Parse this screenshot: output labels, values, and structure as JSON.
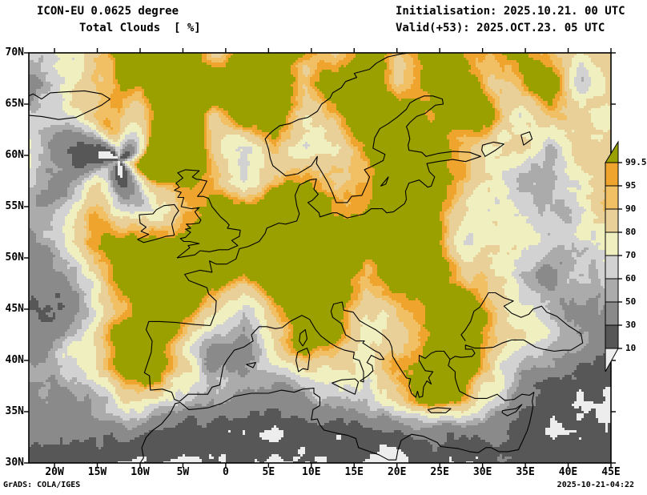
{
  "header": {
    "title_line1": "ICON-EU 0.0625 degree",
    "title_line2": "Total Clouds  [ %]",
    "init_line": "Initialisation: 2025.10.21. 00 UTC",
    "valid_line": "Valid(+53): 2025.OCT.23. 05 UTC"
  },
  "footer": {
    "left": "GrADS: COLA/IGES",
    "right": "2025-10-21-04:22"
  },
  "map": {
    "lat_range": [
      30,
      70
    ],
    "lon_range": [
      -23,
      45
    ],
    "lat_ticks": [
      {
        "label": "70N",
        "value": 70
      },
      {
        "label": "65N",
        "value": 65
      },
      {
        "label": "60N",
        "value": 60
      },
      {
        "label": "55N",
        "value": 55
      },
      {
        "label": "50N",
        "value": 50
      },
      {
        "label": "45N",
        "value": 45
      },
      {
        "label": "40N",
        "value": 40
      },
      {
        "label": "35N",
        "value": 35
      },
      {
        "label": "30N",
        "value": 30
      }
    ],
    "lon_ticks": [
      {
        "label": "20W",
        "value": -20
      },
      {
        "label": "15W",
        "value": -15
      },
      {
        "label": "10W",
        "value": -10
      },
      {
        "label": "5W",
        "value": -5
      },
      {
        "label": "0",
        "value": 0
      },
      {
        "label": "5E",
        "value": 5
      },
      {
        "label": "10E",
        "value": 10
      },
      {
        "label": "15E",
        "value": 15
      },
      {
        "label": "20E",
        "value": 20
      },
      {
        "label": "25E",
        "value": 25
      },
      {
        "label": "30E",
        "value": 30
      },
      {
        "label": "35E",
        "value": 35
      },
      {
        "label": "40E",
        "value": 40
      },
      {
        "label": "45E",
        "value": 45
      }
    ]
  },
  "colorbar": {
    "unit": "%",
    "labels": [
      "99.5",
      "95",
      "90",
      "80",
      "70",
      "60",
      "50",
      "30",
      "10"
    ],
    "levels": [
      99.5,
      95,
      90,
      80,
      70,
      60,
      50,
      30,
      10
    ],
    "colors_top_to_bottom": [
      "#99a000",
      "#eea42d",
      "#f1c065",
      "#e9cf98",
      "#efefc0",
      "#d2d2d2",
      "#ababab",
      "#8a8a8a",
      "#575757",
      "#ededed"
    ],
    "meaning_top_to_bottom": [
      "cloud cover >= 99.5 %",
      "95 - 99.5 %",
      "90 - 95 %",
      "80 - 90 %",
      "70 - 80 %",
      "60 - 70 %",
      "50 - 60 %",
      "30 - 50 %",
      "10 - 30 %",
      "cloud cover < 10 %"
    ]
  }
}
